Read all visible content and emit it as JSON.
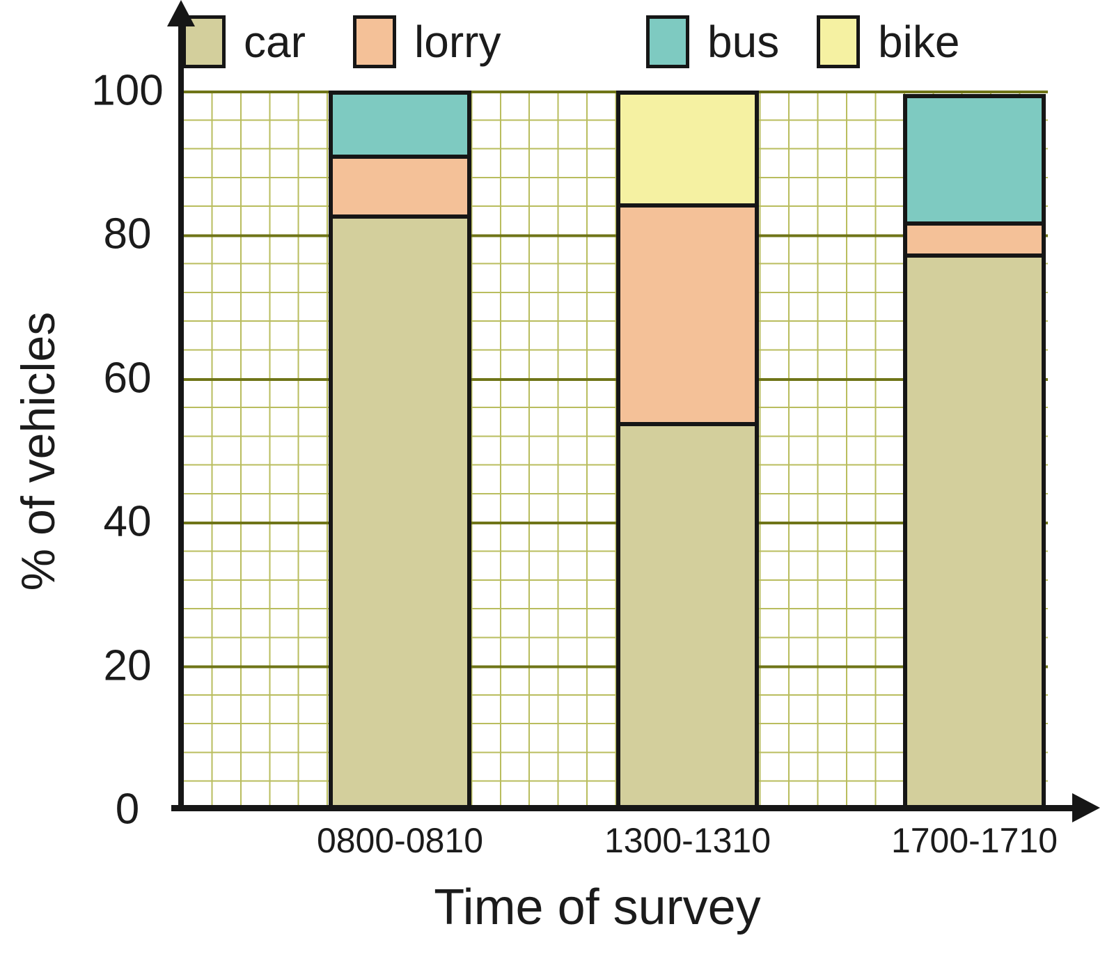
{
  "legend": {
    "items": [
      {
        "label": "car",
        "color": "#d3cf9c"
      },
      {
        "label": "lorry",
        "color": "#f4c198"
      },
      {
        "label": "bus",
        "color": "#7ecac1"
      },
      {
        "label": "bike",
        "color": "#f5f1a2"
      }
    ]
  },
  "chart_data": {
    "type": "bar",
    "stacked": true,
    "title": "",
    "categories": [
      "0800-0810",
      "1300-1310",
      "1700-1710"
    ],
    "series": [
      {
        "name": "car",
        "color": "#d3cf9c",
        "values": [
          83.5,
          54,
          78
        ]
      },
      {
        "name": "lorry",
        "color": "#f4c198",
        "values": [
          8,
          30.5,
          4
        ]
      },
      {
        "name": "bus",
        "color": "#7ecac1",
        "values": [
          8.5,
          0,
          17.5
        ]
      },
      {
        "name": "bike",
        "color": "#f5f1a2",
        "values": [
          0,
          15.5,
          0
        ]
      }
    ],
    "xlabel": "Time of survey",
    "ylabel": "% of vehicles",
    "ylim": [
      0,
      100
    ],
    "yticks": [
      0,
      20,
      40,
      60,
      80,
      100
    ],
    "grid": {
      "minor_step_pct": 4,
      "major_step_pct": 20,
      "minor_color": "#b9bd5e",
      "major_color": "#6f7518"
    },
    "legend_position": "top"
  }
}
